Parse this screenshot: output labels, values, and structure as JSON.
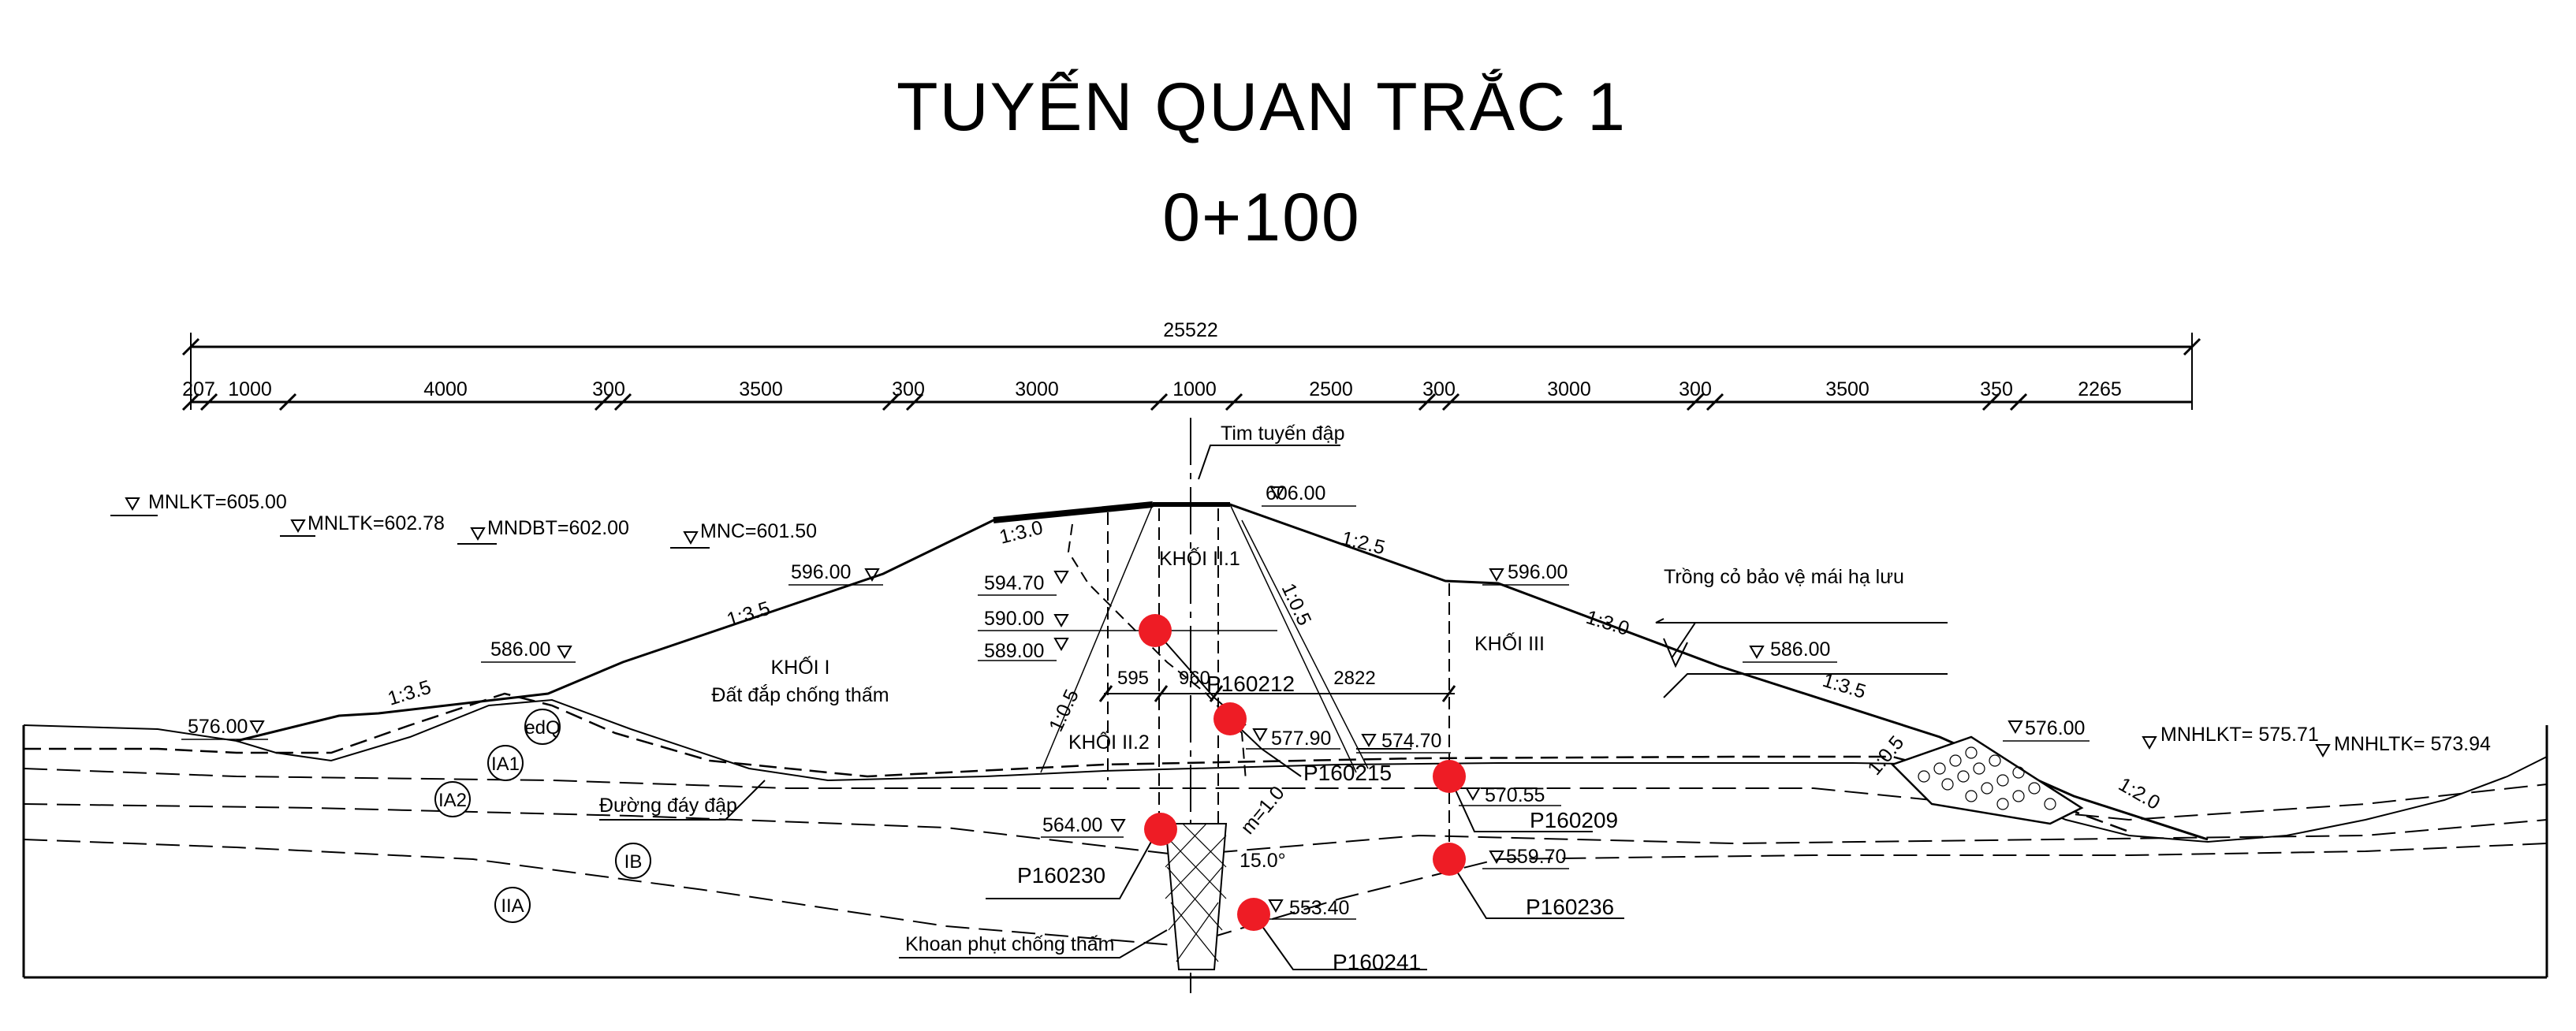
{
  "title": {
    "line1": "TUYẾN QUAN TRẮC 1",
    "line2": "0+100"
  },
  "dimensions": {
    "overall": "25522",
    "segments": [
      "207",
      "1000",
      "4000",
      "300",
      "3500",
      "300",
      "3000",
      "1000",
      "2500",
      "300",
      "3000",
      "300",
      "3500",
      "350",
      "2265"
    ]
  },
  "axis_label": "Tim tuyến đập",
  "water_levels": {
    "mnlkt": "MNLKT=605.00",
    "mnltk": "MNLTK=602.78",
    "mndbt": "MNDBT=602.00",
    "mnc": "MNC=601.50",
    "mnhlkt": "MNHLKT= 575.71",
    "mnhltk": "MNHLTK= 573.94"
  },
  "elevations": {
    "crest": "606.00",
    "us_596": "596.00",
    "us_586": "586.00",
    "us_576": "576.00",
    "ds_596": "596.00",
    "ds_586": "586.00",
    "ds_576": "576.00",
    "core_5947": "594.70",
    "core_5900": "590.00",
    "core_5890": "589.00",
    "e_57790": "577.90",
    "e_57470": "574.70",
    "e_57055": "570.55",
    "e_56400": "564.00",
    "e_55970": "559.70",
    "e_55340": "553.40"
  },
  "slopes": {
    "us_top": "1:3.0",
    "us_mid": "1:3.5",
    "us_low": "1:3.5",
    "ds_top": "1:2.5",
    "ds_mid": "1:3.0",
    "ds_low": "1:3.5",
    "core_right": "1:0.5",
    "core_left": "1:0.5",
    "toe_in": "1:0.5",
    "toe_out": "1:2.0",
    "grout_m": "m=1.0",
    "grout_angle": "15.0°"
  },
  "zones": {
    "khoi1": "KHỐI I",
    "khoi1_desc": "Đất đắp chống thấm",
    "khoi21": "KHỐI II.1",
    "khoi22": "KHỐI II.2",
    "khoi3": "KHỐI III"
  },
  "core_dims": {
    "d595": "595",
    "d960": "960",
    "d2822": "2822"
  },
  "geology": {
    "edq": "edQ",
    "ia1": "IA1",
    "ia2": "IA2",
    "ib": "IB",
    "iia": "IIA"
  },
  "callouts": {
    "base": "Đường đáy đập",
    "grass": "Trồng cỏ bảo vệ mái hạ lưu",
    "grout": "Khoan phụt chống thấm"
  },
  "piezometers": [
    "P160212",
    "P160215",
    "P160209",
    "P160230",
    "P160236",
    "P160241"
  ],
  "colors": {
    "marker": "#ee1c25",
    "line": "#000000",
    "background": "#ffffff"
  }
}
